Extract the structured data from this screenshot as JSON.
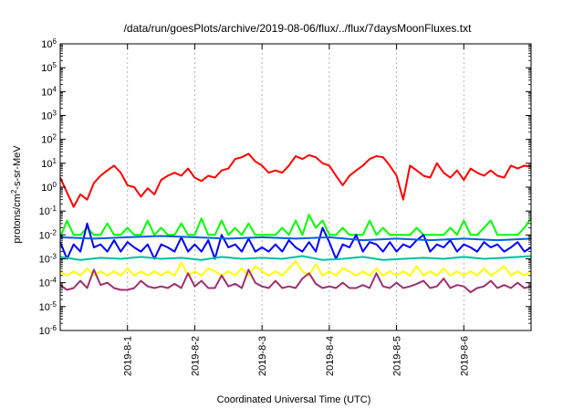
{
  "chart_data": {
    "type": "line",
    "title": "/data/run/goesPlots/archive/2019-08-06/flux/../flux/7daysMoonFluxes.txt",
    "xlabel": "Coordinated Universal Time (UTC)",
    "ylabel_parts": [
      "protons/cm",
      "2",
      "-s-sr-MeV"
    ],
    "yscale": "log",
    "ylim": [
      1e-06,
      1000000.0
    ],
    "xlim": [
      0,
      7
    ],
    "x_unit": "days since 2019-07-31 00:00 UTC",
    "grid": true,
    "x_ticks": [
      {
        "x": 1,
        "label": "2019-8-1"
      },
      {
        "x": 2,
        "label": "2019-8-2"
      },
      {
        "x": 3,
        "label": "2019-8-3"
      },
      {
        "x": 4,
        "label": "2019-8-4"
      },
      {
        "x": 5,
        "label": "2019-8-5"
      },
      {
        "x": 6,
        "label": "2019-8-6"
      }
    ],
    "y_ticks": [
      {
        "exp": -6,
        "label_base": "10",
        "label_exp": "-6"
      },
      {
        "exp": -5,
        "label_base": "10",
        "label_exp": "-5"
      },
      {
        "exp": -4,
        "label_base": "10",
        "label_exp": "-4"
      },
      {
        "exp": -3,
        "label_base": "10",
        "label_exp": "-3"
      },
      {
        "exp": -2,
        "label_base": "10",
        "label_exp": "-2"
      },
      {
        "exp": -1,
        "label_base": "10",
        "label_exp": "-1"
      },
      {
        "exp": 0,
        "label_base": "10",
        "label_exp": "0"
      },
      {
        "exp": 1,
        "label_base": "10",
        "label_exp": "1"
      },
      {
        "exp": 2,
        "label_base": "10",
        "label_exp": "2"
      },
      {
        "exp": 3,
        "label_base": "10",
        "label_exp": "3"
      },
      {
        "exp": 4,
        "label_base": "10",
        "label_exp": "4"
      },
      {
        "exp": 5,
        "label_base": "10",
        "label_exp": "5"
      },
      {
        "exp": 6,
        "label_base": "10",
        "label_exp": "6"
      }
    ],
    "series": [
      {
        "color": "#ff0000",
        "x": [
          0,
          0.1,
          0.2,
          0.3,
          0.4,
          0.5,
          0.6,
          0.7,
          0.8,
          0.9,
          1.0,
          1.1,
          1.2,
          1.3,
          1.4,
          1.5,
          1.6,
          1.7,
          1.8,
          1.9,
          2.0,
          2.1,
          2.2,
          2.3,
          2.4,
          2.5,
          2.6,
          2.7,
          2.8,
          2.9,
          3.0,
          3.1,
          3.2,
          3.3,
          3.4,
          3.5,
          3.6,
          3.7,
          3.8,
          3.9,
          4.0,
          4.1,
          4.2,
          4.3,
          4.4,
          4.5,
          4.6,
          4.7,
          4.8,
          4.9,
          5.0,
          5.1,
          5.2,
          5.3,
          5.4,
          5.5,
          5.6,
          5.7,
          5.8,
          5.9,
          6.0,
          6.1,
          6.2,
          6.3,
          6.4,
          6.5,
          6.6,
          6.7,
          6.8,
          6.9,
          7.0
        ],
        "y": [
          2.5,
          0.6,
          0.15,
          0.5,
          0.3,
          1.5,
          3,
          5,
          8,
          4,
          1.2,
          1.0,
          0.4,
          0.9,
          0.5,
          2,
          3,
          4,
          3,
          6,
          2.5,
          1.8,
          3,
          2.5,
          5,
          6,
          15,
          18,
          25,
          12,
          8,
          4,
          5,
          4,
          8,
          20,
          15,
          22,
          18,
          10,
          8,
          3,
          1.2,
          3,
          5,
          8,
          15,
          20,
          18,
          8,
          3,
          0.3,
          8,
          5,
          3,
          2.5,
          10,
          4,
          2.5,
          5,
          2,
          6,
          4,
          3,
          5,
          3,
          2.5,
          8,
          6,
          8,
          7
        ]
      },
      {
        "color": "#00ff00",
        "x": [
          0,
          0.1,
          0.2,
          0.3,
          0.4,
          0.5,
          0.6,
          0.7,
          0.8,
          0.9,
          1.0,
          1.1,
          1.2,
          1.3,
          1.4,
          1.5,
          1.6,
          1.7,
          1.8,
          1.9,
          2.0,
          2.1,
          2.2,
          2.3,
          2.4,
          2.5,
          2.6,
          2.7,
          2.8,
          2.9,
          3.0,
          3.1,
          3.2,
          3.3,
          3.4,
          3.5,
          3.6,
          3.7,
          3.8,
          3.9,
          4.0,
          4.1,
          4.2,
          4.3,
          4.4,
          4.5,
          4.6,
          4.7,
          4.8,
          4.9,
          5.0,
          5.1,
          5.2,
          5.3,
          5.4,
          5.5,
          5.6,
          5.7,
          5.8,
          5.9,
          6.0,
          6.1,
          6.2,
          6.3,
          6.4,
          6.5,
          6.6,
          6.7,
          6.8,
          6.9,
          7.0
        ],
        "y": [
          0.008,
          0.04,
          0.01,
          0.01,
          0.02,
          0.01,
          0.01,
          0.03,
          0.01,
          0.01,
          0.02,
          0.01,
          0.01,
          0.04,
          0.01,
          0.02,
          0.01,
          0.01,
          0.03,
          0.01,
          0.01,
          0.05,
          0.01,
          0.01,
          0.04,
          0.01,
          0.02,
          0.01,
          0.03,
          0.01,
          0.01,
          0.01,
          0.01,
          0.02,
          0.01,
          0.04,
          0.01,
          0.07,
          0.02,
          0.04,
          0.01,
          0.01,
          0.02,
          0.01,
          0.01,
          0.01,
          0.04,
          0.01,
          0.02,
          0.01,
          0.01,
          0.01,
          0.01,
          0.02,
          0.01,
          0.01,
          0.01,
          0.01,
          0.02,
          0.01,
          0.04,
          0.01,
          0.01,
          0.02,
          0.04,
          0.01,
          0.01,
          0.01,
          0.01,
          0.02,
          0.05
        ]
      },
      {
        "color": "#0000ff",
        "x": [
          0,
          0.1,
          0.2,
          0.3,
          0.4,
          0.5,
          0.6,
          0.7,
          0.8,
          0.9,
          1.0,
          1.1,
          1.2,
          1.3,
          1.4,
          1.5,
          1.6,
          1.7,
          1.8,
          1.9,
          2.0,
          2.1,
          2.2,
          2.3,
          2.4,
          2.5,
          2.6,
          2.7,
          2.8,
          2.9,
          3.0,
          3.1,
          3.2,
          3.3,
          3.4,
          3.5,
          3.6,
          3.7,
          3.8,
          3.9,
          4.0,
          4.1,
          4.2,
          4.3,
          4.4,
          4.5,
          4.6,
          4.7,
          4.8,
          4.9,
          5.0,
          5.1,
          5.2,
          5.3,
          5.4,
          5.5,
          5.6,
          5.7,
          5.8,
          5.9,
          6.0,
          6.1,
          6.2,
          6.3,
          6.4,
          6.5,
          6.6,
          6.7,
          6.8,
          6.9,
          7.0
        ],
        "y": [
          0.005,
          0.001,
          0.004,
          0.002,
          0.03,
          0.003,
          0.004,
          0.002,
          0.006,
          0.002,
          0.005,
          0.003,
          0.002,
          0.004,
          0.001,
          0.004,
          0.003,
          0.002,
          0.008,
          0.002,
          0.004,
          0.002,
          0.006,
          0.001,
          0.01,
          0.003,
          0.004,
          0.002,
          0.007,
          0.002,
          0.003,
          0.002,
          0.004,
          0.002,
          0.006,
          0.003,
          0.002,
          0.005,
          0.002,
          0.02,
          0.005,
          0.001,
          0.004,
          0.003,
          0.01,
          0.002,
          0.005,
          0.004,
          0.002,
          0.005,
          0.002,
          0.004,
          0.003,
          0.006,
          0.01,
          0.002,
          0.004,
          0.003,
          0.006,
          0.002,
          0.004,
          0.003,
          0.002,
          0.005,
          0.003,
          0.004,
          0.002,
          0.003,
          0.005,
          0.002,
          0.003
        ]
      },
      {
        "color": "#0060d8",
        "x": [
          0,
          0.5,
          1.0,
          1.5,
          2.0,
          2.5,
          3.0,
          3.5,
          4.0,
          4.5,
          5.0,
          5.5,
          6.0,
          6.5,
          7.0
        ],
        "y": [
          0.008,
          0.007,
          0.008,
          0.009,
          0.008,
          0.007,
          0.008,
          0.007,
          0.008,
          0.006,
          0.007,
          0.006,
          0.007,
          0.006,
          0.007
        ]
      },
      {
        "color": "#00c0a0",
        "x": [
          0,
          0.3,
          0.6,
          0.9,
          1.2,
          1.5,
          1.8,
          2.1,
          2.4,
          2.7,
          3.0,
          3.3,
          3.6,
          3.9,
          4.2,
          4.5,
          4.8,
          5.1,
          5.4,
          5.7,
          6.0,
          6.3,
          6.6,
          7.0
        ],
        "y": [
          0.0012,
          0.0009,
          0.0011,
          0.001,
          0.0012,
          0.001,
          0.0011,
          0.0009,
          0.0012,
          0.001,
          0.0011,
          0.001,
          0.0013,
          0.0009,
          0.001,
          0.0012,
          0.0009,
          0.001,
          0.0011,
          0.001,
          0.0012,
          0.001,
          0.0011,
          0.0013
        ]
      },
      {
        "color": "#ffff00",
        "x": [
          0,
          0.1,
          0.2,
          0.3,
          0.4,
          0.5,
          0.6,
          0.7,
          0.8,
          0.9,
          1.0,
          1.1,
          1.2,
          1.3,
          1.4,
          1.5,
          1.6,
          1.7,
          1.8,
          1.9,
          2.0,
          2.1,
          2.2,
          2.3,
          2.4,
          2.5,
          2.6,
          2.7,
          2.8,
          2.9,
          3.0,
          3.1,
          3.2,
          3.3,
          3.4,
          3.5,
          3.6,
          3.7,
          3.8,
          3.9,
          4.0,
          4.1,
          4.2,
          4.3,
          4.4,
          4.5,
          4.6,
          4.7,
          4.8,
          4.9,
          5.0,
          5.1,
          5.2,
          5.3,
          5.4,
          5.5,
          5.6,
          5.7,
          5.8,
          5.9,
          6.0,
          6.1,
          6.2,
          6.3,
          6.4,
          6.5,
          6.6,
          6.7,
          6.8,
          6.9,
          7.0
        ],
        "y": [
          0.0003,
          0.0002,
          0.0003,
          0.0002,
          0.0004,
          0.0002,
          0.0003,
          0.0002,
          0.0003,
          0.0002,
          0.0004,
          0.0002,
          0.0003,
          0.0002,
          0.0003,
          0.0002,
          0.0003,
          0.0002,
          0.0007,
          0.0002,
          0.0003,
          0.0002,
          0.0004,
          0.0003,
          0.0002,
          0.0003,
          0.0002,
          0.0004,
          0.0002,
          0.0005,
          0.0003,
          0.0002,
          0.0003,
          0.0002,
          0.0004,
          0.0008,
          0.0003,
          0.0002,
          0.0006,
          0.0002,
          0.0003,
          0.0002,
          0.0004,
          0.0003,
          0.0002,
          0.0003,
          0.0002,
          0.0004,
          0.0002,
          0.0003,
          0.0002,
          0.0003,
          0.0002,
          0.0005,
          0.0002,
          0.0003,
          0.0002,
          0.0004,
          0.0002,
          0.0003,
          0.0002,
          0.0003,
          0.0002,
          0.0004,
          0.0002,
          0.0003,
          0.0005,
          0.0002,
          0.0003,
          0.0002,
          0.0003
        ]
      },
      {
        "color": "#9c3070",
        "x": [
          0,
          0.1,
          0.2,
          0.3,
          0.4,
          0.5,
          0.6,
          0.7,
          0.8,
          0.9,
          1.0,
          1.1,
          1.2,
          1.3,
          1.4,
          1.5,
          1.6,
          1.7,
          1.8,
          1.9,
          2.0,
          2.1,
          2.2,
          2.3,
          2.4,
          2.5,
          2.6,
          2.7,
          2.8,
          2.9,
          3.0,
          3.1,
          3.2,
          3.3,
          3.4,
          3.5,
          3.6,
          3.7,
          3.8,
          3.9,
          4.0,
          4.1,
          4.2,
          4.3,
          4.4,
          4.5,
          4.6,
          4.7,
          4.8,
          4.9,
          5.0,
          5.1,
          5.2,
          5.3,
          5.4,
          5.5,
          5.6,
          5.7,
          5.8,
          5.9,
          6.0,
          6.1,
          6.2,
          6.3,
          6.4,
          6.5,
          6.6,
          6.7,
          6.8,
          6.9,
          7.0
        ],
        "y": [
          8e-05,
          5e-05,
          6e-05,
          0.00012,
          6e-05,
          0.00035,
          8e-05,
          0.0001,
          6e-05,
          5e-05,
          5e-05,
          6e-05,
          0.00012,
          7e-05,
          6e-05,
          7e-05,
          6e-05,
          9e-05,
          6e-05,
          0.00025,
          7e-05,
          0.00012,
          6e-05,
          6e-05,
          0.0002,
          7e-05,
          9e-05,
          6e-05,
          0.00035,
          0.0001,
          7e-05,
          6e-05,
          0.00012,
          6e-05,
          7e-05,
          6e-05,
          0.00015,
          0.00025,
          9e-05,
          6e-05,
          7e-05,
          6e-05,
          0.0001,
          6e-05,
          6e-05,
          8e-05,
          6e-05,
          0.00025,
          7e-05,
          6e-05,
          0.0001,
          6e-05,
          7e-05,
          9e-05,
          0.00012,
          6e-05,
          7e-05,
          0.00015,
          6e-05,
          8e-05,
          7e-05,
          4e-05,
          6e-05,
          7e-05,
          0.00012,
          6e-05,
          8e-05,
          6e-05,
          0.0001,
          6e-05,
          7e-05
        ]
      }
    ]
  }
}
